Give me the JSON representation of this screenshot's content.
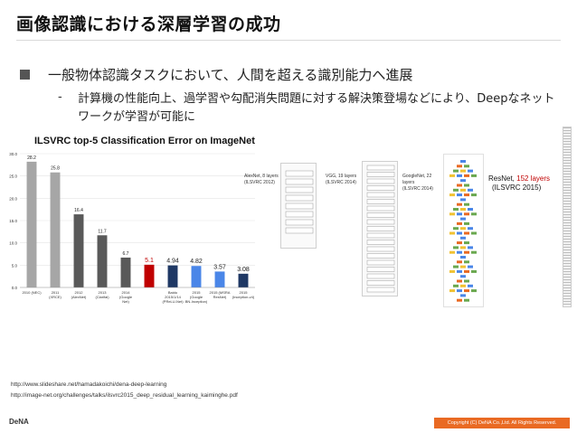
{
  "header": {
    "title": "画像認識における深層学習の成功"
  },
  "bullet": {
    "text": "一般物体認識タスクにおいて、人間を超える識別能力へ進展"
  },
  "sub_bullet": {
    "dash": "-",
    "text": "計算機の性能向上、過学習や勾配消失問題に対する解決策登場などにより、Deepなネットワークが学習が可能に"
  },
  "chart_data": {
    "type": "bar",
    "title": "ILSVRC top-5 Classification Error on ImageNet",
    "categories": [
      "2010 (NEC)",
      "2011 (XRCE)",
      "2012 (AlexNet)",
      "2013 (Clarifai)",
      "2014 (Google Net)",
      "",
      "Baidu 2015/1/14 (PReLU-Net)",
      "2015 (Google BN-Inception)",
      "2015 (MSRA ResNet)",
      "2015 (Inception-v4)"
    ],
    "values": [
      28.2,
      25.8,
      16.4,
      11.7,
      6.7,
      5.1,
      4.94,
      4.82,
      3.57,
      3.08
    ],
    "value_labels": [
      "28.2",
      "25.8",
      "16.4",
      "11.7",
      "6.7",
      "5.1",
      "4.94",
      "4.82",
      "3.57",
      "3.08"
    ],
    "ylim": [
      0,
      30
    ],
    "yticks": [
      "0.0",
      "5.0",
      "10.0",
      "15.0",
      "20.0",
      "25.0",
      "30.0"
    ],
    "colors": [
      "#a6a6a6",
      "#a6a6a6",
      "#595959",
      "#595959",
      "#595959",
      "#c00000",
      "#1f3864",
      "#4a86e8",
      "#4a86e8",
      "#1f3864"
    ],
    "grid": true
  },
  "architectures": {
    "alexnet": "AlexNet, 8 layers\n(ILSVRC 2012)",
    "vgg": "VGG, 19 layers\n(ILSVRC 2014)",
    "googlenet": "GoogleNet, 22 layers\n(ILSVRC 2014)",
    "resnet_prefix": "ResNet, ",
    "resnet_layers": "152 layers",
    "resnet_year": "(ILSVRC 2015)"
  },
  "references": {
    "ref1": "http://www.slideshare.net/hamadakoichi/dena-deep-learning",
    "ref2": "http://image-net.org/challenges/talks/ilsvrc2015_deep_residual_learning_kaiminghe.pdf"
  },
  "footer": {
    "logo": "DeNA",
    "copyright": "Copyright (C) DeNA Co.,Ltd. All Rights Reserved."
  },
  "accent_color": "#e96a23"
}
